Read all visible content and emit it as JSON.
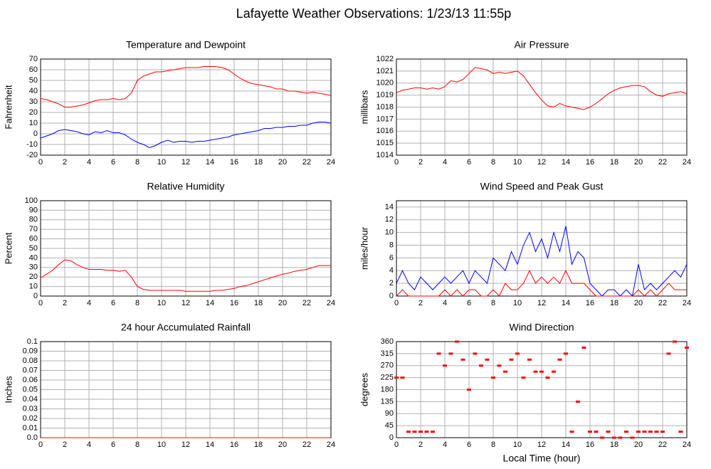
{
  "title": "Lafayette Weather Observations: 1/23/13 11:55p",
  "chart_data": [
    {
      "type": "line",
      "title": "Temperature and Dewpoint",
      "ylabel": "Fahrenheit",
      "x": [
        0,
        0.5,
        1,
        1.5,
        2,
        2.5,
        3,
        3.5,
        4,
        4.5,
        5,
        5.5,
        6,
        6.5,
        7,
        7.5,
        8,
        8.5,
        9,
        9.5,
        10,
        10.5,
        11,
        11.5,
        12,
        12.5,
        13,
        13.5,
        14,
        14.5,
        15,
        15.5,
        16,
        16.5,
        17,
        17.5,
        18,
        18.5,
        19,
        19.5,
        20,
        20.5,
        21,
        21.5,
        22,
        22.5,
        23,
        23.5,
        24
      ],
      "series": [
        {
          "color": "#ff0000",
          "values": [
            33,
            32,
            30,
            28,
            25,
            25,
            26,
            27,
            29,
            31,
            32,
            32,
            33,
            32,
            33,
            38,
            50,
            54,
            56,
            58,
            58,
            59,
            60,
            61,
            62,
            62,
            62,
            63,
            63,
            63,
            62,
            60,
            56,
            52,
            49,
            47,
            46,
            45,
            44,
            42,
            42,
            40,
            40,
            39,
            38,
            39,
            38,
            37,
            36
          ]
        },
        {
          "color": "#0000ff",
          "values": [
            -4,
            -2,
            0,
            3,
            4,
            3,
            2,
            0,
            -1,
            2,
            1,
            3,
            1,
            1,
            -1,
            -5,
            -8,
            -10,
            -13,
            -11,
            -8,
            -6,
            -8,
            -7,
            -7,
            -8,
            -7,
            -7,
            -6,
            -5,
            -4,
            -3,
            -1,
            0,
            1,
            2,
            3,
            5,
            5,
            6,
            6,
            7,
            7,
            8,
            8,
            10,
            11,
            11,
            10
          ]
        }
      ],
      "xlim": [
        0,
        24
      ],
      "xticks": [
        0,
        2,
        4,
        6,
        8,
        10,
        12,
        14,
        16,
        18,
        20,
        22,
        24
      ],
      "ylim": [
        -20,
        70
      ],
      "yticks": [
        -20,
        -10,
        0,
        10,
        20,
        30,
        40,
        50,
        60,
        70
      ],
      "grid": true
    },
    {
      "type": "line",
      "title": "Air Pressure",
      "ylabel": "millibars",
      "x": [
        0,
        0.5,
        1,
        1.5,
        2,
        2.5,
        3,
        3.5,
        4,
        4.5,
        5,
        5.5,
        6,
        6.5,
        7,
        7.5,
        8,
        8.5,
        9,
        9.5,
        10,
        10.5,
        11,
        11.5,
        12,
        12.5,
        13,
        13.5,
        14,
        14.5,
        15,
        15.5,
        16,
        16.5,
        17,
        17.5,
        18,
        18.5,
        19,
        19.5,
        20,
        20.5,
        21,
        21.5,
        22,
        22.5,
        23,
        23.5,
        24
      ],
      "series": [
        {
          "color": "#ff0000",
          "values": [
            1019.2,
            1019.4,
            1019.5,
            1019.6,
            1019.6,
            1019.5,
            1019.6,
            1019.5,
            1019.7,
            1020.2,
            1020.1,
            1020.3,
            1020.8,
            1021.3,
            1021.2,
            1021.1,
            1020.8,
            1020.9,
            1020.8,
            1020.9,
            1021,
            1020.6,
            1019.9,
            1019.2,
            1018.6,
            1018.1,
            1018,
            1018.3,
            1018.1,
            1018,
            1017.9,
            1017.8,
            1018,
            1018.3,
            1018.7,
            1019.1,
            1019.4,
            1019.6,
            1019.7,
            1019.8,
            1019.8,
            1019.7,
            1019.3,
            1019,
            1018.9,
            1019.1,
            1019.2,
            1019.3,
            1019.1
          ]
        }
      ],
      "xlim": [
        0,
        24
      ],
      "xticks": [
        0,
        2,
        4,
        6,
        8,
        10,
        12,
        14,
        16,
        18,
        20,
        22,
        24
      ],
      "ylim": [
        1014,
        1022
      ],
      "yticks": [
        1014,
        1015,
        1016,
        1017,
        1018,
        1019,
        1020,
        1021,
        1022
      ],
      "grid": true
    },
    {
      "type": "line",
      "title": "Relative Humidity",
      "ylabel": "Percent",
      "x": [
        0,
        0.5,
        1,
        1.5,
        2,
        2.5,
        3,
        3.5,
        4,
        4.5,
        5,
        5.5,
        6,
        6.5,
        7,
        7.5,
        8,
        8.5,
        9,
        9.5,
        10,
        10.5,
        11,
        11.5,
        12,
        12.5,
        13,
        13.5,
        14,
        14.5,
        15,
        15.5,
        16,
        16.5,
        17,
        17.5,
        18,
        18.5,
        19,
        19.5,
        20,
        20.5,
        21,
        21.5,
        22,
        22.5,
        23,
        23.5,
        24
      ],
      "series": [
        {
          "color": "#ff0000",
          "values": [
            19,
            23,
            27,
            33,
            38,
            37,
            33,
            30,
            28,
            28,
            28,
            27,
            27,
            26,
            27,
            20,
            10,
            7,
            6,
            6,
            6,
            6,
            6,
            6,
            5,
            5,
            5,
            5,
            5,
            6,
            6,
            7,
            8,
            10,
            11,
            13,
            15,
            17,
            19,
            21,
            23,
            24,
            26,
            27,
            28,
            30,
            32,
            32,
            32
          ]
        }
      ],
      "xlim": [
        0,
        24
      ],
      "xticks": [
        0,
        2,
        4,
        6,
        8,
        10,
        12,
        14,
        16,
        18,
        20,
        22,
        24
      ],
      "ylim": [
        0,
        100
      ],
      "yticks": [
        0,
        10,
        20,
        30,
        40,
        50,
        60,
        70,
        80,
        90,
        100
      ],
      "grid": true
    },
    {
      "type": "line",
      "title": "Wind Speed and Peak Gust",
      "ylabel": "miles/hour",
      "x": [
        0,
        0.5,
        1,
        1.5,
        2,
        2.5,
        3,
        3.5,
        4,
        4.5,
        5,
        5.5,
        6,
        6.5,
        7,
        7.5,
        8,
        8.5,
        9,
        9.5,
        10,
        10.5,
        11,
        11.5,
        12,
        12.5,
        13,
        13.5,
        14,
        14.5,
        15,
        15.5,
        16,
        16.5,
        17,
        17.5,
        18,
        18.5,
        19,
        19.5,
        20,
        20.5,
        21,
        21.5,
        22,
        22.5,
        23,
        23.5,
        24
      ],
      "series": [
        {
          "color": "#0000ff",
          "values": [
            2,
            4,
            2,
            1,
            3,
            2,
            1,
            2,
            3,
            2,
            3,
            4,
            2,
            4,
            3,
            2,
            6,
            5,
            4,
            7,
            5,
            8,
            10,
            7,
            9,
            6,
            10,
            7,
            11,
            5,
            7,
            6,
            2,
            1,
            0,
            1,
            1,
            0,
            1,
            0,
            5,
            1,
            2,
            1,
            2,
            3,
            4,
            3,
            5
          ]
        },
        {
          "color": "#ff0000",
          "values": [
            0,
            1,
            0,
            0,
            0,
            0,
            0,
            0,
            1,
            0,
            1,
            0,
            1,
            1,
            0,
            0,
            1,
            0,
            2,
            1,
            1,
            2,
            4,
            2,
            3,
            2,
            3,
            2,
            4,
            2,
            2,
            2,
            1,
            0,
            0,
            0,
            0,
            0,
            0,
            0,
            1,
            0,
            1,
            0,
            1,
            2,
            1,
            1,
            1
          ]
        }
      ],
      "xlim": [
        0,
        24
      ],
      "xticks": [
        0,
        2,
        4,
        6,
        8,
        10,
        12,
        14,
        16,
        18,
        20,
        22,
        24
      ],
      "ylim": [
        0,
        15
      ],
      "yticks": [
        0,
        2,
        4,
        6,
        8,
        10,
        12,
        14
      ],
      "grid": true
    },
    {
      "type": "line",
      "title": "24 hour Accumulated Rainfall",
      "ylabel": "Inches",
      "x": [
        0,
        0.5,
        1,
        1.5,
        2,
        2.5,
        3,
        3.5,
        4,
        4.5,
        5,
        5.5,
        6,
        6.5,
        7,
        7.5,
        8,
        8.5,
        9,
        9.5,
        10,
        10.5,
        11,
        11.5,
        12,
        12.5,
        13,
        13.5,
        14,
        14.5,
        15,
        15.5,
        16,
        16.5,
        17,
        17.5,
        18,
        18.5,
        19,
        19.5,
        20,
        20.5,
        21,
        21.5,
        22,
        22.5,
        23,
        23.5,
        24
      ],
      "series": [
        {
          "color": "#ff0000",
          "values": [
            0,
            0,
            0,
            0,
            0,
            0,
            0,
            0,
            0,
            0,
            0,
            0,
            0,
            0,
            0,
            0,
            0,
            0,
            0,
            0,
            0,
            0,
            0,
            0,
            0,
            0,
            0,
            0,
            0,
            0,
            0,
            0,
            0,
            0,
            0,
            0,
            0,
            0,
            0,
            0,
            0,
            0,
            0,
            0,
            0,
            0,
            0,
            0,
            0
          ]
        }
      ],
      "xlim": [
        0,
        24
      ],
      "xticks": [
        0,
        2,
        4,
        6,
        8,
        10,
        12,
        14,
        16,
        18,
        20,
        22,
        24
      ],
      "ylim": [
        0,
        0.1
      ],
      "yticks": [
        {
          "value": 0,
          "label": "0.0"
        },
        0.01,
        0.02,
        0.03,
        0.04,
        0.05,
        0.06,
        0.07,
        0.08,
        0.09,
        0.1
      ],
      "grid": true
    },
    {
      "type": "scatter",
      "title": "Wind Direction",
      "ylabel": "degrees",
      "xlabel": "Local Time (hour)",
      "x": [
        0,
        0.5,
        1,
        1.5,
        2,
        2.5,
        3,
        3.5,
        4,
        4.5,
        5,
        5.5,
        6,
        6.5,
        7,
        7.5,
        8,
        8.5,
        9,
        9.5,
        10,
        10.5,
        11,
        11.5,
        12,
        12.5,
        13,
        13.5,
        14,
        14.5,
        15,
        15.5,
        16,
        16.5,
        17,
        17.5,
        18,
        18.5,
        19,
        19.5,
        20,
        20.5,
        21,
        21.5,
        22,
        22.5,
        23,
        23.5,
        24
      ],
      "series": [
        {
          "color": "#ff0000",
          "values": [
            225,
            225,
            22.5,
            22.5,
            22.5,
            22.5,
            22.5,
            315,
            270,
            315,
            360,
            292.5,
            180,
            315,
            270,
            292.5,
            225,
            270,
            247.5,
            292.5,
            315,
            225,
            292.5,
            247.5,
            247.5,
            225,
            247.5,
            292.5,
            315,
            22.5,
            135,
            337.5,
            22.5,
            22.5,
            0,
            22.5,
            0,
            0,
            22.5,
            0,
            22.5,
            22.5,
            22.5,
            22.5,
            22.5,
            315,
            360,
            22.5,
            337.5
          ]
        }
      ],
      "xlim": [
        0,
        24
      ],
      "xticks": [
        0,
        2,
        4,
        6,
        8,
        10,
        12,
        14,
        16,
        18,
        20,
        22,
        24
      ],
      "ylim": [
        0,
        360
      ],
      "yticks": [
        0,
        45,
        90,
        135,
        180,
        225,
        270,
        315,
        360
      ],
      "grid": true
    }
  ]
}
